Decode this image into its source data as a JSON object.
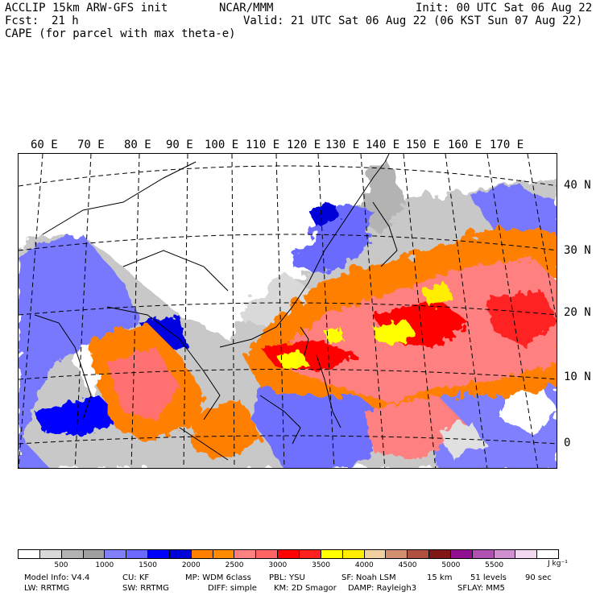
{
  "header": {
    "model_title": "ACCLIP 15km ARW-GFS init",
    "org": "NCAR/MMM",
    "init": "Init: 00 UTC Sat 06 Aug 22",
    "fcst_label": "Fcst:",
    "fcst_value": "21 h",
    "valid": "Valid: 21 UTC Sat 06 Aug 22 (06 KST Sun 07 Aug 22)",
    "field": "CAPE (for parcel with max theta-e)"
  },
  "map": {
    "lon_labels": [
      "60 E",
      "70 E",
      "80 E",
      "90 E",
      "100 E",
      "110 E",
      "120 E",
      "130 E",
      "140 E",
      "150 E",
      "160 E",
      "170 E"
    ],
    "lat_labels": [
      "40 N",
      "30 N",
      "20 N",
      "10 N",
      "0"
    ]
  },
  "colorbar": {
    "colors": [
      "#ffffff",
      "#d9d9d9",
      "#b3b3b3",
      "#a0a0a0",
      "#8080ff",
      "#6a6aff",
      "#0000ff",
      "#0000d8",
      "#ff8000",
      "#ff8c00",
      "#ff8080",
      "#ff6464",
      "#ff0000",
      "#ff2020",
      "#ffff00",
      "#ffee00",
      "#f0d0a0",
      "#d09070",
      "#b05040",
      "#801818",
      "#901090",
      "#b050b0",
      "#d090d0",
      "#f0d8f0",
      "#ffffff"
    ],
    "ticks": [
      "500",
      "1000",
      "1500",
      "2000",
      "2500",
      "3000",
      "3500",
      "4000",
      "4500",
      "5000",
      "5500"
    ],
    "unit": "J kg⁻¹"
  },
  "footer": {
    "line1": [
      "Model Info: V4.4",
      "CU: KF",
      "MP: WDM 6class",
      "PBL: YSU",
      "SF: Noah LSM",
      "15 km",
      "51 levels",
      "90 sec"
    ],
    "line2": [
      "LW: RRTMG",
      "SW: RRTMG",
      "DIFF: simple",
      "KM: 2D Smagor",
      "DAMP: Rayleigh3",
      "SFLAY: MM5"
    ]
  }
}
